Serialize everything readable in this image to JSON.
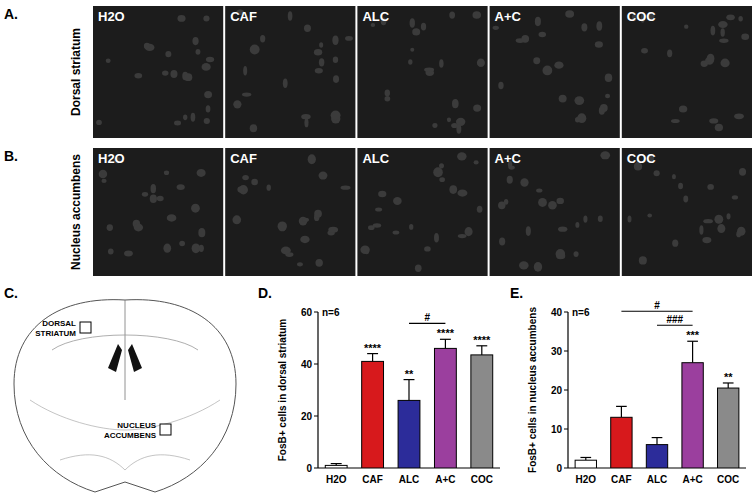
{
  "figure": {
    "panel_letters": [
      "A.",
      "B.",
      "C.",
      "D.",
      "E."
    ],
    "row_labels": [
      "Dorsal striatum",
      "Nucleus accumbens"
    ],
    "image_labels": [
      "H2O",
      "CAF",
      "ALC",
      "A+C",
      "COC"
    ],
    "schematic_labels": [
      "DORSAL STRIATUM",
      "NUCLEUS ACCUMBENS"
    ]
  },
  "chart_data": [
    {
      "type": "bar",
      "subtitle": "n=6",
      "y_label": "FosB+ cells in dorsal striatum",
      "categories": [
        "H2O",
        "CAF",
        "ALC",
        "A+C",
        "COC"
      ],
      "values": [
        1,
        41,
        26,
        46,
        43.5
      ],
      "errors": [
        0.7,
        3,
        8,
        3.5,
        3.5
      ],
      "colors": [
        "#ffffff",
        "#d7191c",
        "#2c2c9a",
        "#9b3f9e",
        "#8a8a8a"
      ],
      "ylim": [
        0,
        60
      ],
      "yticks": [
        0,
        20,
        40,
        60
      ],
      "grid": false,
      "annotations": [
        {
          "text": "****",
          "category": "CAF"
        },
        {
          "text": "**",
          "category": "ALC"
        },
        {
          "text": "****",
          "category": "A+C"
        },
        {
          "text": "****",
          "category": "COC"
        }
      ],
      "brackets": [
        {
          "text": "#",
          "from": "ALC",
          "to": "A+C"
        }
      ]
    },
    {
      "type": "bar",
      "subtitle": "n=6",
      "y_label": "FosB+ cells in nucleus accumbens",
      "categories": [
        "H2O",
        "CAF",
        "ALC",
        "A+C",
        "COC"
      ],
      "values": [
        2,
        13,
        6,
        27,
        20.5
      ],
      "errors": [
        0.7,
        2.8,
        1.8,
        5.5,
        1.3
      ],
      "colors": [
        "#ffffff",
        "#d7191c",
        "#2c2c9a",
        "#9b3f9e",
        "#8a8a8a"
      ],
      "ylim": [
        0,
        40
      ],
      "yticks": [
        0,
        10,
        20,
        30,
        40
      ],
      "grid": false,
      "annotations": [
        {
          "text": "***",
          "category": "A+C"
        },
        {
          "text": "**",
          "category": "COC"
        }
      ],
      "brackets": [
        {
          "text": "###",
          "from": "ALC",
          "to": "A+C"
        },
        {
          "text": "#",
          "from": "CAF",
          "to": "A+C"
        }
      ]
    }
  ]
}
